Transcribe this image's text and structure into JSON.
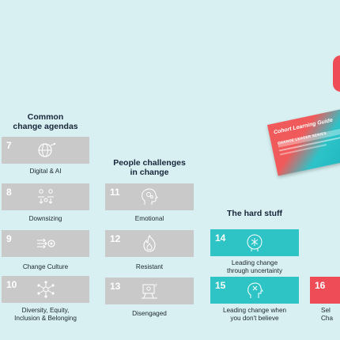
{
  "columns": {
    "common": {
      "title_line1": "Common",
      "title_line2": "change agendas"
    },
    "people": {
      "title_line1": "People challenges",
      "title_line2": "in change"
    },
    "hard": {
      "title": "The hard stuff"
    }
  },
  "tiles": {
    "t7": {
      "number": "7",
      "caption_line1": "Digital & AI",
      "caption_line2": "",
      "icon": "globe-circuit-icon"
    },
    "t8": {
      "number": "8",
      "caption_line1": "Downsizing",
      "caption_line2": "",
      "icon": "people-down-arrows-icon"
    },
    "t9": {
      "number": "9",
      "caption_line1": "Change Culture",
      "caption_line2": "",
      "icon": "arrows-gear-icon"
    },
    "t10": {
      "number": "10",
      "caption_line1": "Diversity, Equity,",
      "caption_line2": "Inclusion & Belonging",
      "icon": "diversity-network-icon"
    },
    "t11": {
      "number": "11",
      "caption_line1": "Emotional",
      "caption_line2": "",
      "icon": "emotional-head-icon"
    },
    "t12": {
      "number": "12",
      "caption_line1": "Resistant",
      "caption_line2": "",
      "icon": "fire-hand-icon"
    },
    "t13": {
      "number": "13",
      "caption_line1": "Disengaged",
      "caption_line2": "",
      "icon": "disengaged-person-icon"
    },
    "t14": {
      "number": "14",
      "caption_line1": "Leading change",
      "caption_line2": "through uncertainty",
      "icon": "head-question-icon"
    },
    "t15": {
      "number": "15",
      "caption_line1": "Leading change when",
      "caption_line2": "you don't believe",
      "icon": "doubt-head-icon"
    },
    "t16": {
      "number": "16",
      "caption_line1": "Sel",
      "caption_line2": "Cha",
      "icon": ""
    }
  },
  "guide": {
    "script": "Cohort Learning Guide",
    "subtitle": "CHANGE LEADER SERIES"
  },
  "colors": {
    "background": "#d8f0f1",
    "grey_tile": "#c9c9c9",
    "teal_tile": "#2ec4c6",
    "red_tile": "#ee4c57"
  }
}
